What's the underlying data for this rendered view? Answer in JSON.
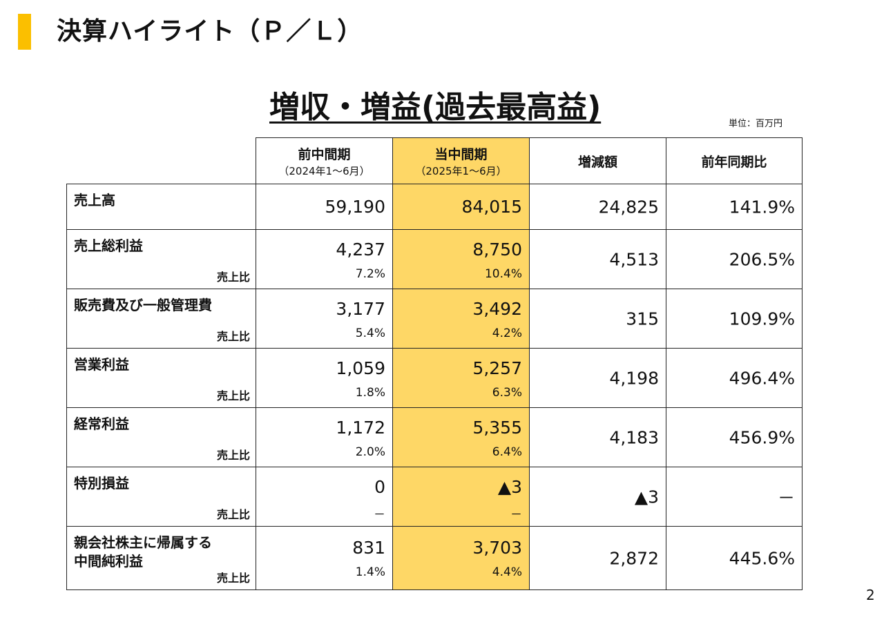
{
  "slide": {
    "title": "決算ハイライト（Ｐ／Ｌ）",
    "headline": "増収・増益(過去最高益)",
    "unit": "単位：百万円",
    "page_number": "2",
    "accent_color": "#fbbf00",
    "highlight_color": "#fed766"
  },
  "table": {
    "headers": [
      {
        "label": "前中間期",
        "sub": "（2024年1～6月）"
      },
      {
        "label": "当中間期",
        "sub": "（2025年1～6月）"
      },
      {
        "label": "増減額",
        "sub": ""
      },
      {
        "label": "前年同期比",
        "sub": ""
      }
    ],
    "rows": [
      {
        "label": "売上高",
        "ratio_label": "",
        "prev": "59,190",
        "prev_ratio": "",
        "cur": "84,015",
        "cur_ratio": "",
        "diff": "24,825",
        "yoy": "141.9%"
      },
      {
        "label": "売上総利益",
        "ratio_label": "売上比",
        "prev": "4,237",
        "prev_ratio": "7.2%",
        "cur": "8,750",
        "cur_ratio": "10.4%",
        "diff": "4,513",
        "yoy": "206.5%"
      },
      {
        "label": "販売費及び一般管理費",
        "ratio_label": "売上比",
        "prev": "3,177",
        "prev_ratio": "5.4%",
        "cur": "3,492",
        "cur_ratio": "4.2%",
        "diff": "315",
        "yoy": "109.9%"
      },
      {
        "label": "営業利益",
        "ratio_label": "売上比",
        "prev": "1,059",
        "prev_ratio": "1.8%",
        "cur": "5,257",
        "cur_ratio": "6.3%",
        "diff": "4,198",
        "yoy": "496.4%"
      },
      {
        "label": "経常利益",
        "ratio_label": "売上比",
        "prev": "1,172",
        "prev_ratio": "2.0%",
        "cur": "5,355",
        "cur_ratio": "6.4%",
        "diff": "4,183",
        "yoy": "456.9%"
      },
      {
        "label": "特別損益",
        "ratio_label": "売上比",
        "prev": "0",
        "prev_ratio": "－",
        "cur": "▲3",
        "cur_ratio": "－",
        "diff": "▲3",
        "yoy": "－"
      },
      {
        "label": "親会社株主に帰属する\n中間純利益",
        "ratio_label": "売上比",
        "prev": "831",
        "prev_ratio": "1.4%",
        "cur": "3,703",
        "cur_ratio": "4.4%",
        "diff": "2,872",
        "yoy": "445.6%"
      }
    ]
  }
}
